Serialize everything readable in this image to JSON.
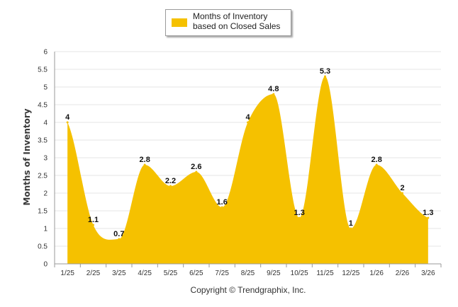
{
  "legend": {
    "label": "Months of Inventory based on Closed Sales"
  },
  "footer": {
    "copyright": "Copyright © Trendgraphix, Inc."
  },
  "colors": {
    "area": "#f5c100",
    "grid": "#e6e6e6",
    "axis": "#9a9a9a",
    "label": "#111111"
  },
  "chart_data": {
    "type": "area",
    "title": "",
    "xlabel": "",
    "ylabel": "Months of Inventory",
    "categories": [
      "1/25",
      "2/25",
      "3/25",
      "4/25",
      "5/25",
      "6/25",
      "7/25",
      "8/25",
      "9/25",
      "10/25",
      "11/25",
      "12/25",
      "1/26",
      "2/26",
      "3/26"
    ],
    "series": [
      {
        "name": "Months of Inventory based on Closed Sales",
        "values": [
          4,
          1.1,
          0.7,
          2.8,
          2.2,
          2.6,
          1.6,
          4,
          4.8,
          1.3,
          5.3,
          1,
          2.8,
          2,
          1.3
        ]
      }
    ],
    "data_labels": [
      "4",
      "1.1",
      "0.7",
      "2.8",
      "2.2",
      "2.6",
      "1.6",
      "4",
      "4.8",
      "1.3",
      "5.3",
      "1",
      "2.8",
      "2",
      "1.3"
    ],
    "y_ticks": [
      "0",
      "0.5",
      "1",
      "1.5",
      "2",
      "2.5",
      "3",
      "3.5",
      "4",
      "4.5",
      "5",
      "5.5",
      "6"
    ],
    "ylim": [
      0,
      6
    ],
    "grid": true,
    "legend_position": "top-center"
  }
}
